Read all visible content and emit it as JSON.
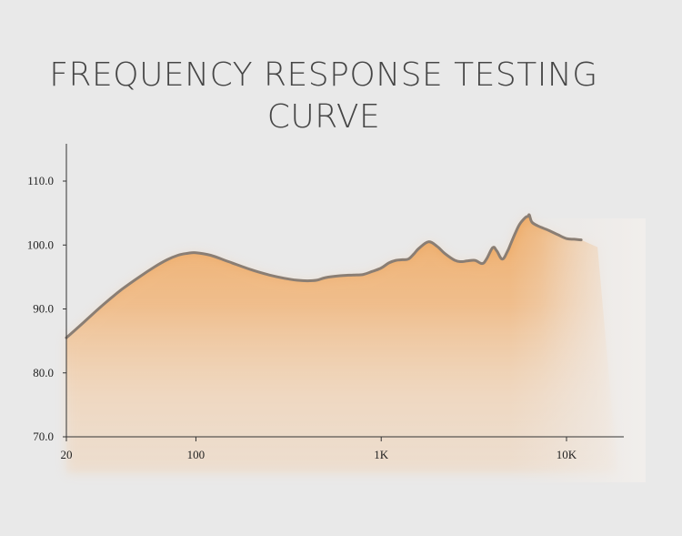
{
  "title_lines": [
    "FREQUENCY RESPONSE TESTING",
    "CURVE"
  ],
  "colors": {
    "background": "#e9e9e9",
    "curve_stroke": "#8a7e74",
    "fill_top": "#ec9a45",
    "axis": "#333333"
  },
  "chart_data": {
    "type": "area",
    "title": "FREQUENCY RESPONSE TESTING CURVE",
    "xlabel": "",
    "ylabel": "",
    "x_scale": "log",
    "xlim": [
      20,
      25000
    ],
    "ylim": [
      70,
      115
    ],
    "x_ticks": [
      {
        "value": 20,
        "label": "20"
      },
      {
        "value": 100,
        "label": "100"
      },
      {
        "value": 1000,
        "label": "1K"
      },
      {
        "value": 10000,
        "label": "10K"
      }
    ],
    "y_ticks": [
      {
        "value": 70,
        "label": "70.0"
      },
      {
        "value": 80,
        "label": "80.0"
      },
      {
        "value": 90,
        "label": "90.0"
      },
      {
        "value": 100,
        "label": "100.0"
      },
      {
        "value": 110,
        "label": "110.0"
      }
    ],
    "grid": false,
    "series": [
      {
        "x": [
          20,
          25,
          32,
          40,
          50,
          60,
          70,
          80,
          90,
          100,
          120,
          150,
          200,
          250,
          300,
          350,
          400,
          450,
          500,
          600,
          700,
          800,
          900,
          1000,
          1100,
          1200,
          1300,
          1400,
          1500,
          1600,
          1800,
          2000,
          2200,
          2500,
          2700,
          2900,
          3200,
          3500,
          3700,
          4000,
          4200,
          4500,
          4800,
          5000,
          5300,
          5600,
          6000,
          6200,
          6300,
          6500,
          7000,
          8000,
          9000,
          10000,
          11000,
          12000
        ],
        "y": [
          85.5,
          88,
          90.8,
          93.1,
          95.1,
          96.6,
          97.7,
          98.4,
          98.7,
          98.8,
          98.4,
          97.4,
          96.1,
          95.3,
          94.8,
          94.5,
          94.4,
          94.5,
          94.9,
          95.2,
          95.3,
          95.4,
          95.9,
          96.4,
          97.2,
          97.6,
          97.7,
          97.8,
          98.6,
          99.5,
          100.5,
          99.8,
          98.7,
          97.6,
          97.4,
          97.5,
          97.6,
          97.1,
          97.8,
          99.6,
          99.1,
          97.8,
          99.0,
          100.2,
          101.9,
          103.3,
          104.3,
          104.5,
          104.7,
          103.6,
          103.0,
          102.3,
          101.6,
          101.0,
          100.9,
          100.8
        ]
      }
    ]
  }
}
